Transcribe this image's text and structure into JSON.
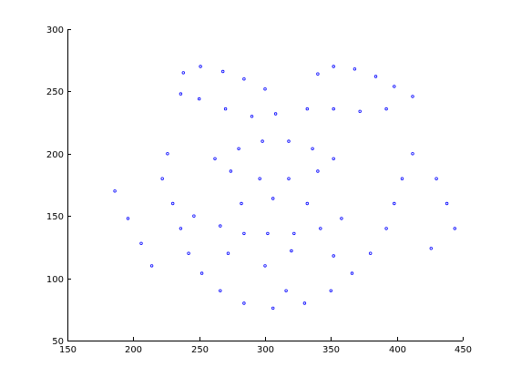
{
  "chart_data": {
    "type": "scatter",
    "title": "",
    "xlabel": "",
    "ylabel": "",
    "xlim": [
      150,
      450
    ],
    "ylim": [
      50,
      300
    ],
    "xticks": [
      "150",
      "200",
      "250",
      "300",
      "350",
      "400",
      "450"
    ],
    "yticks": [
      "50",
      "100",
      "150",
      "200",
      "250",
      "300"
    ],
    "grid": false,
    "marker": "o",
    "color": "#0000ff",
    "series": [
      {
        "values": [
          [
            238,
            265
          ],
          [
            251,
            270
          ],
          [
            268,
            266
          ],
          [
            284,
            260
          ],
          [
            300,
            252
          ],
          [
            340,
            264
          ],
          [
            352,
            270
          ],
          [
            368,
            268
          ],
          [
            384,
            262
          ],
          [
            398,
            254
          ],
          [
            236,
            248
          ],
          [
            250,
            244
          ],
          [
            270,
            236
          ],
          [
            290,
            230
          ],
          [
            308,
            232
          ],
          [
            332,
            236
          ],
          [
            352,
            236
          ],
          [
            372,
            234
          ],
          [
            392,
            236
          ],
          [
            412,
            246
          ],
          [
            262,
            196
          ],
          [
            280,
            204
          ],
          [
            298,
            210
          ],
          [
            318,
            210
          ],
          [
            336,
            204
          ],
          [
            352,
            196
          ],
          [
            274,
            186
          ],
          [
            296,
            180
          ],
          [
            318,
            180
          ],
          [
            340,
            186
          ],
          [
            246,
            150
          ],
          [
            266,
            142
          ],
          [
            284,
            136
          ],
          [
            302,
            136
          ],
          [
            322,
            136
          ],
          [
            342,
            140
          ],
          [
            358,
            148
          ],
          [
            282,
            160
          ],
          [
            306,
            164
          ],
          [
            332,
            160
          ],
          [
            222,
            180
          ],
          [
            230,
            160
          ],
          [
            236,
            140
          ],
          [
            242,
            120
          ],
          [
            252,
            104
          ],
          [
            266,
            90
          ],
          [
            284,
            80
          ],
          [
            306,
            76
          ],
          [
            330,
            80
          ],
          [
            350,
            90
          ],
          [
            366,
            104
          ],
          [
            380,
            120
          ],
          [
            392,
            140
          ],
          [
            398,
            160
          ],
          [
            404,
            180
          ],
          [
            186,
            170
          ],
          [
            196,
            148
          ],
          [
            206,
            128
          ],
          [
            214,
            110
          ],
          [
            430,
            180
          ],
          [
            438,
            160
          ],
          [
            444,
            140
          ],
          [
            426,
            124
          ],
          [
            316,
            90
          ],
          [
            300,
            110
          ],
          [
            272,
            120
          ],
          [
            352,
            118
          ],
          [
            320,
            122
          ],
          [
            226,
            200
          ],
          [
            412,
            200
          ]
        ]
      }
    ]
  }
}
